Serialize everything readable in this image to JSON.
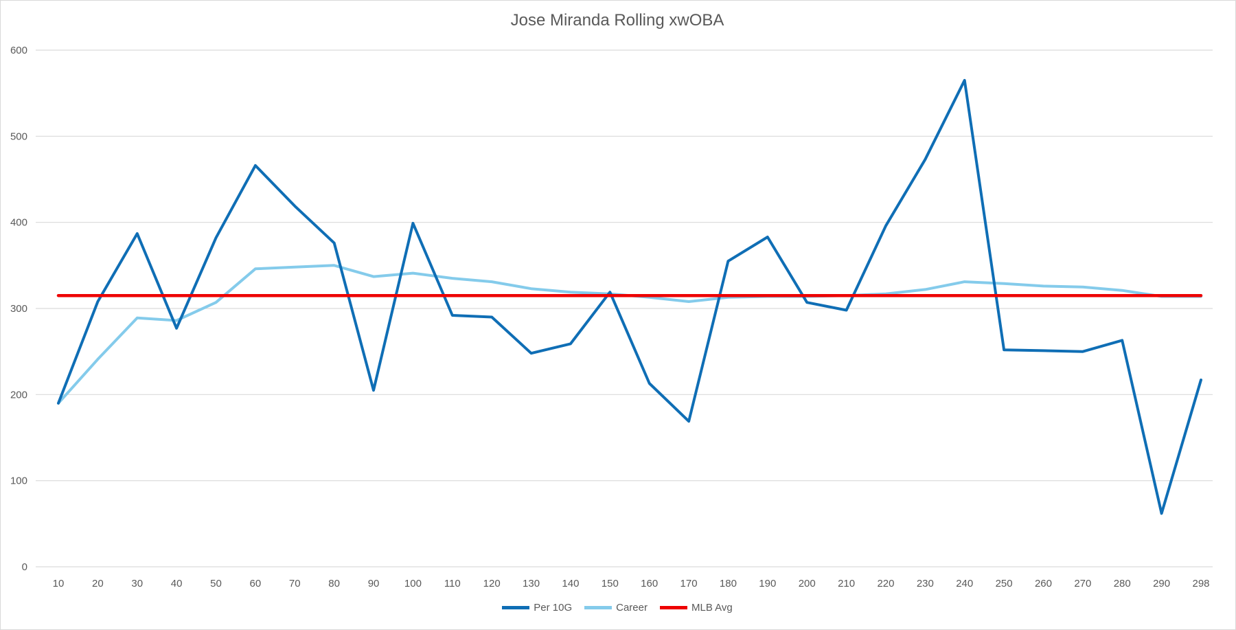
{
  "chart_data": {
    "type": "line",
    "title": "Jose Miranda Rolling xwOBA",
    "xlabel": "",
    "ylabel": "",
    "ylim": [
      0,
      600
    ],
    "yticks": [
      "0",
      "100",
      "200",
      "300",
      "400",
      "500",
      "600"
    ],
    "grid": true,
    "legend_position": "bottom",
    "categories": [
      "10",
      "20",
      "30",
      "40",
      "50",
      "60",
      "70",
      "80",
      "90",
      "100",
      "110",
      "120",
      "130",
      "140",
      "150",
      "160",
      "170",
      "180",
      "190",
      "200",
      "210",
      "220",
      "230",
      "240",
      "250",
      "260",
      "270",
      "280",
      "290",
      "298"
    ],
    "series": [
      {
        "name": "Per 10G",
        "color": "#0f6eb5",
        "values": [
          190,
          308,
          387,
          277,
          382,
          466,
          419,
          376,
          205,
          399,
          292,
          290,
          248,
          259,
          319,
          213,
          169,
          355,
          383,
          307,
          298,
          396,
          473,
          565,
          252,
          251,
          250,
          263,
          62,
          217
        ]
      },
      {
        "name": "Career",
        "color": "#84cbeb",
        "values": [
          190,
          241,
          289,
          286,
          307,
          346,
          348,
          350,
          337,
          341,
          335,
          331,
          323,
          319,
          317,
          313,
          308,
          313,
          314,
          314,
          315,
          317,
          322,
          331,
          329,
          326,
          325,
          321,
          314,
          314
        ]
      },
      {
        "name": "MLB Avg",
        "color": "#ee0000",
        "values": [
          315,
          315,
          315,
          315,
          315,
          315,
          315,
          315,
          315,
          315,
          315,
          315,
          315,
          315,
          315,
          315,
          315,
          315,
          315,
          315,
          315,
          315,
          315,
          315,
          315,
          315,
          315,
          315,
          315,
          315
        ]
      }
    ]
  }
}
